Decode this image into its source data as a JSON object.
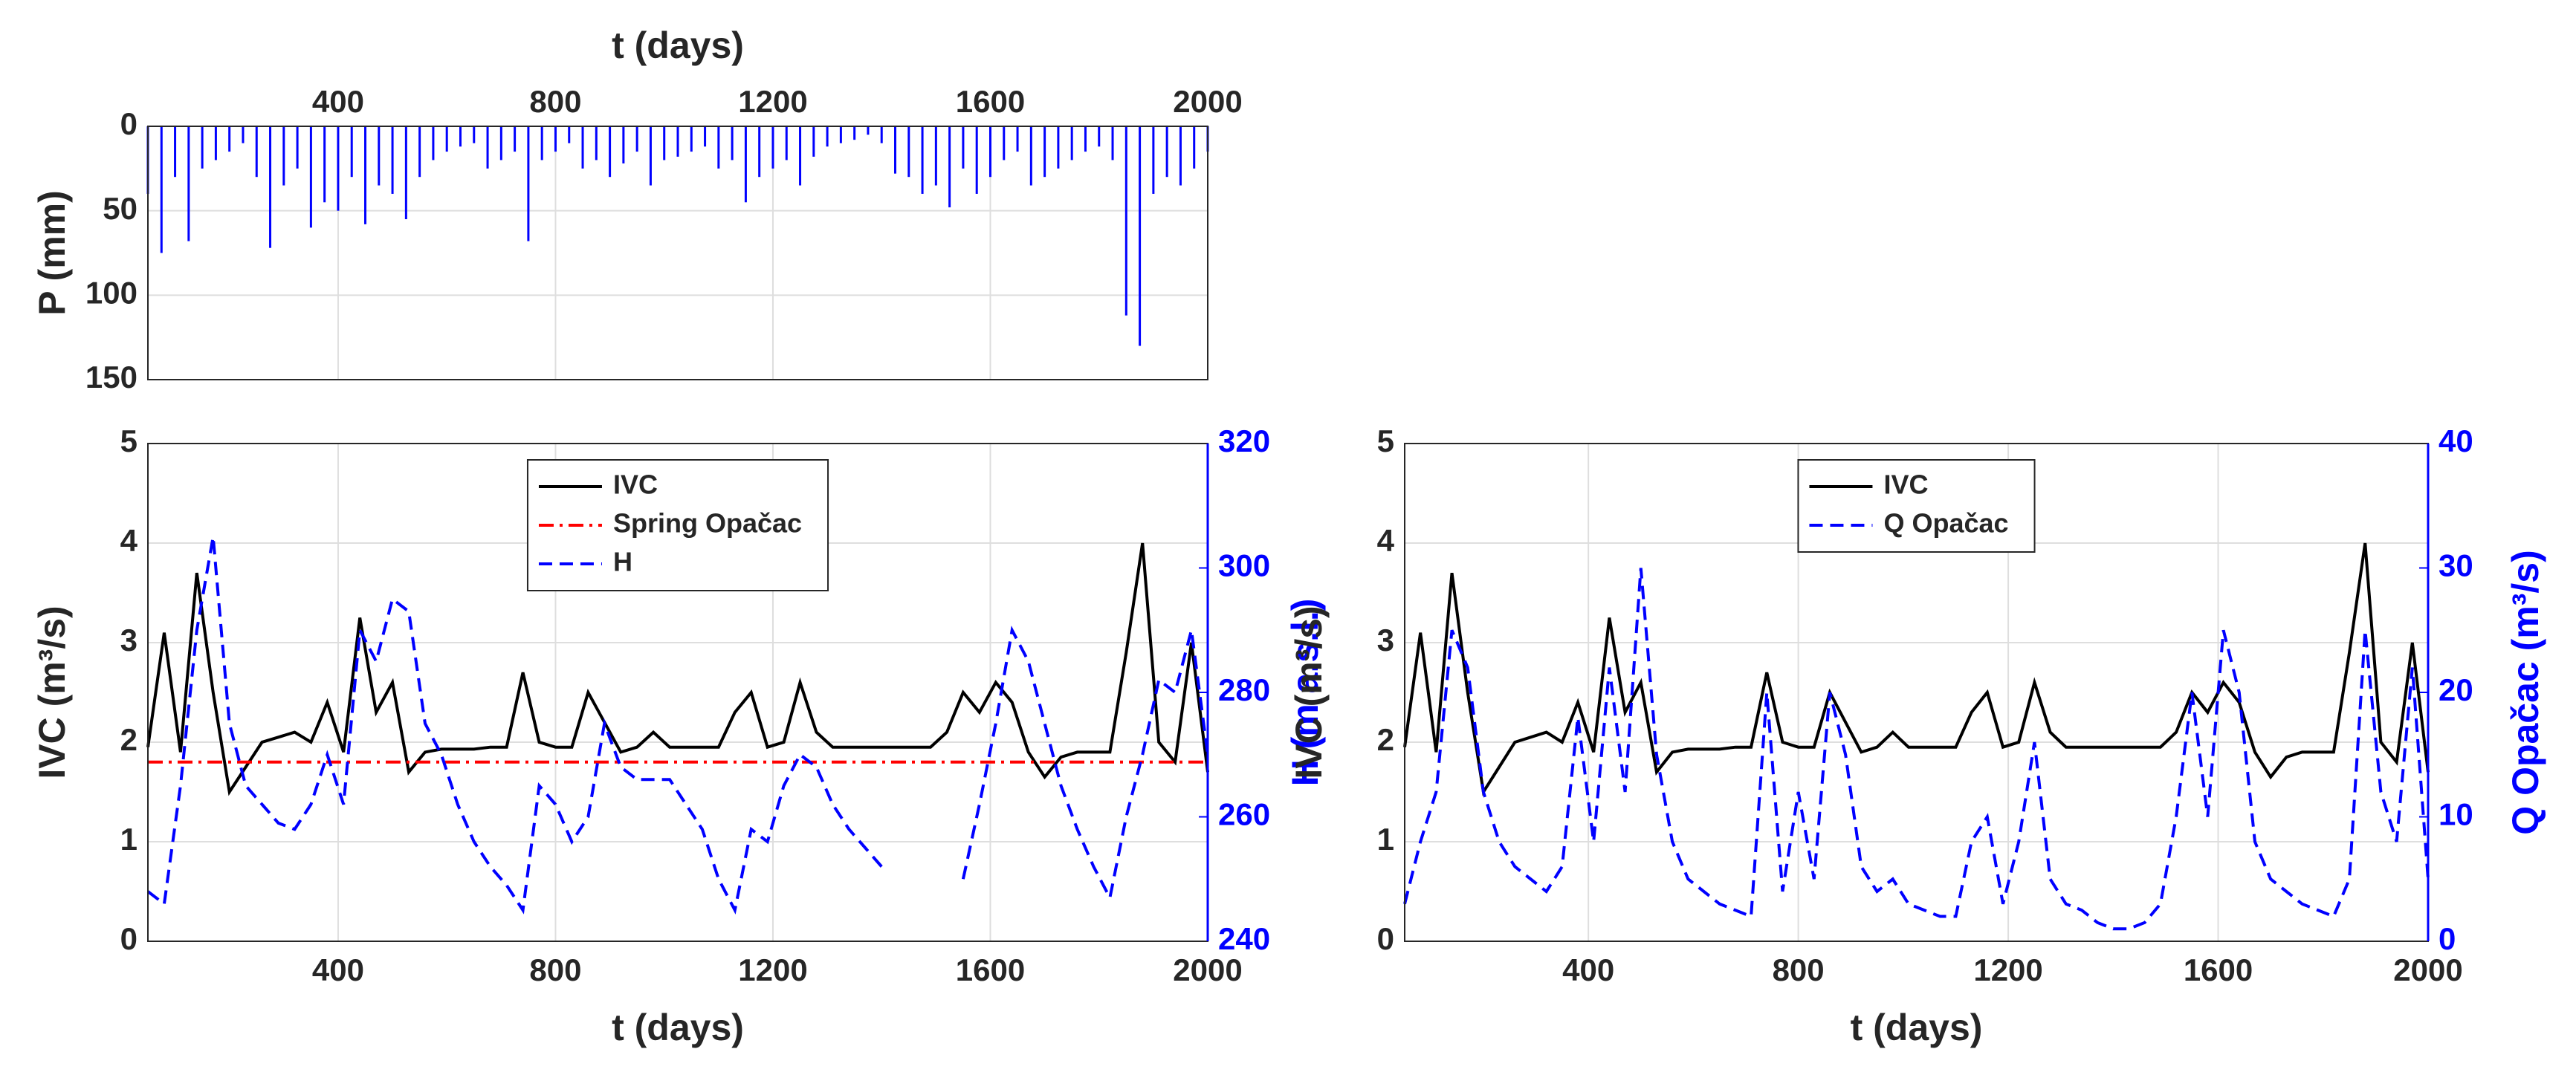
{
  "chart_data": [
    {
      "type": "bar",
      "xlabel": "t (days)",
      "ylabel": "P (mm)",
      "xaxis_position": "top",
      "y_reversed": true,
      "grid": true,
      "color": "#0000ff",
      "xlim": [
        50,
        2000
      ],
      "xticks": [
        400,
        800,
        1200,
        1600,
        2000
      ],
      "ylim": [
        0,
        150
      ],
      "yticks": [
        0,
        50,
        100,
        150
      ],
      "x": [
        50,
        75,
        100,
        125,
        150,
        175,
        200,
        225,
        250,
        275,
        300,
        325,
        350,
        375,
        400,
        425,
        450,
        475,
        500,
        525,
        550,
        575,
        600,
        625,
        650,
        675,
        700,
        725,
        750,
        775,
        800,
        825,
        850,
        875,
        900,
        925,
        950,
        975,
        1000,
        1025,
        1050,
        1075,
        1100,
        1125,
        1150,
        1175,
        1200,
        1225,
        1250,
        1275,
        1300,
        1325,
        1350,
        1375,
        1400,
        1425,
        1450,
        1475,
        1500,
        1525,
        1550,
        1575,
        1600,
        1625,
        1650,
        1675,
        1700,
        1725,
        1750,
        1775,
        1800,
        1825,
        1850,
        1875,
        1900,
        1925,
        1950,
        1975,
        2000
      ],
      "values": [
        40,
        75,
        30,
        68,
        25,
        20,
        15,
        10,
        30,
        72,
        35,
        25,
        60,
        45,
        50,
        30,
        58,
        35,
        40,
        55,
        30,
        20,
        15,
        12,
        10,
        25,
        20,
        15,
        68,
        20,
        15,
        10,
        25,
        20,
        30,
        22,
        15,
        35,
        20,
        18,
        15,
        12,
        25,
        20,
        45,
        30,
        25,
        20,
        35,
        18,
        12,
        10,
        8,
        5,
        10,
        28,
        30,
        40,
        35,
        48,
        25,
        40,
        30,
        20,
        15,
        35,
        30,
        25,
        20,
        15,
        12,
        20,
        112,
        130,
        40,
        30,
        35,
        25,
        15
      ]
    },
    {
      "type": "line",
      "xlabel": "t (days)",
      "ylabel": "IVC (m³/s)",
      "y2label": "H (m a.s.l.)",
      "y2color": "#0000ff",
      "grid": true,
      "legend": "north",
      "xlim": [
        50,
        2000
      ],
      "xticks": [
        400,
        800,
        1200,
        1600,
        2000
      ],
      "ylim": [
        0,
        5
      ],
      "yticks": [
        0,
        1,
        2,
        3,
        4,
        5
      ],
      "y2lim": [
        240,
        320
      ],
      "y2ticks": [
        240,
        260,
        280,
        300,
        320
      ],
      "x": [
        50,
        80,
        110,
        140,
        170,
        200,
        230,
        260,
        290,
        320,
        350,
        380,
        410,
        440,
        470,
        500,
        530,
        560,
        590,
        620,
        650,
        680,
        710,
        740,
        770,
        800,
        830,
        860,
        890,
        920,
        950,
        980,
        1010,
        1040,
        1070,
        1100,
        1130,
        1160,
        1190,
        1220,
        1250,
        1280,
        1310,
        1340,
        1370,
        1400,
        1430,
        1460,
        1490,
        1520,
        1550,
        1580,
        1610,
        1640,
        1670,
        1700,
        1730,
        1760,
        1790,
        1820,
        1850,
        1880,
        1910,
        1940,
        1970,
        2000
      ],
      "series": [
        {
          "name": "IVC",
          "color": "#000000",
          "style": "solid",
          "values": [
            1.95,
            3.1,
            1.9,
            3.7,
            2.5,
            1.5,
            1.75,
            2.0,
            2.05,
            2.1,
            2.0,
            2.4,
            1.9,
            3.25,
            2.3,
            2.6,
            1.7,
            1.9,
            1.93,
            1.93,
            1.93,
            1.95,
            1.95,
            2.7,
            2.0,
            1.95,
            1.95,
            2.5,
            2.2,
            1.9,
            1.95,
            2.1,
            1.95,
            1.95,
            1.95,
            1.95,
            2.3,
            2.5,
            1.95,
            2.0,
            2.6,
            2.1,
            1.95,
            1.95,
            1.95,
            1.95,
            1.95,
            1.95,
            1.95,
            2.1,
            2.5,
            2.3,
            2.6,
            2.4,
            1.9,
            1.65,
            1.85,
            1.9,
            1.9,
            1.9,
            2.9,
            4.0,
            2.0,
            1.8,
            3.0,
            1.7
          ]
        },
        {
          "name": "Spring Opačac",
          "color": "#ff0000",
          "style": "dashdot",
          "x": [
            50,
            2000
          ],
          "values": [
            1.8,
            1.8
          ]
        },
        {
          "name": "H",
          "color": "#0000ff",
          "style": "dashed",
          "axis": "y2",
          "values": [
            248,
            246,
            265,
            290,
            305,
            275,
            265,
            262,
            259,
            258,
            262,
            270,
            262,
            290,
            285,
            295,
            293,
            275,
            270,
            262,
            256,
            252,
            249,
            245,
            265,
            262,
            256,
            260,
            275,
            268,
            266,
            266,
            266,
            262,
            258,
            250,
            245,
            258,
            256,
            265,
            270,
            268,
            262,
            258,
            255,
            252,
            null,
            null,
            null,
            null,
            250,
            262,
            275,
            290,
            285,
            275,
            265,
            258,
            252,
            247,
            260,
            270,
            282,
            280,
            290,
            270
          ]
        }
      ]
    },
    {
      "type": "line",
      "xlabel": "t (days)",
      "ylabel": "IVC (m³/s)",
      "y2label": "Q Opačac (m³/s)",
      "y2color": "#0000ff",
      "grid": true,
      "legend": "north",
      "xlim": [
        50,
        2000
      ],
      "xticks": [
        400,
        800,
        1200,
        1600,
        2000
      ],
      "ylim": [
        0,
        5
      ],
      "yticks": [
        0,
        1,
        2,
        3,
        4,
        5
      ],
      "y2lim": [
        0,
        40
      ],
      "y2ticks": [
        0,
        10,
        20,
        30,
        40
      ],
      "x": [
        50,
        80,
        110,
        140,
        170,
        200,
        230,
        260,
        290,
        320,
        350,
        380,
        410,
        440,
        470,
        500,
        530,
        560,
        590,
        620,
        650,
        680,
        710,
        740,
        770,
        800,
        830,
        860,
        890,
        920,
        950,
        980,
        1010,
        1040,
        1070,
        1100,
        1130,
        1160,
        1190,
        1220,
        1250,
        1280,
        1310,
        1340,
        1370,
        1400,
        1430,
        1460,
        1490,
        1520,
        1550,
        1580,
        1610,
        1640,
        1670,
        1700,
        1730,
        1760,
        1790,
        1820,
        1850,
        1880,
        1910,
        1940,
        1970,
        2000
      ],
      "series": [
        {
          "name": "IVC",
          "color": "#000000",
          "style": "solid",
          "values": [
            1.95,
            3.1,
            1.9,
            3.7,
            2.5,
            1.5,
            1.75,
            2.0,
            2.05,
            2.1,
            2.0,
            2.4,
            1.9,
            3.25,
            2.3,
            2.6,
            1.7,
            1.9,
            1.93,
            1.93,
            1.93,
            1.95,
            1.95,
            2.7,
            2.0,
            1.95,
            1.95,
            2.5,
            2.2,
            1.9,
            1.95,
            2.1,
            1.95,
            1.95,
            1.95,
            1.95,
            2.3,
            2.5,
            1.95,
            2.0,
            2.6,
            2.1,
            1.95,
            1.95,
            1.95,
            1.95,
            1.95,
            1.95,
            1.95,
            2.1,
            2.5,
            2.3,
            2.6,
            2.4,
            1.9,
            1.65,
            1.85,
            1.9,
            1.9,
            1.9,
            2.9,
            4.0,
            2.0,
            1.8,
            3.0,
            1.7
          ]
        },
        {
          "name": "Q Opačac",
          "color": "#0000ff",
          "style": "dashed",
          "axis": "y2",
          "values": [
            3,
            8,
            12,
            25,
            22,
            12,
            8,
            6,
            5,
            4,
            6,
            18,
            8,
            22,
            12,
            30,
            15,
            8,
            5,
            4,
            3,
            2.5,
            2,
            20,
            4,
            12,
            5,
            20,
            15,
            6,
            4,
            5,
            3,
            2.5,
            2,
            2,
            8,
            10,
            3,
            8,
            16,
            5,
            3,
            2.5,
            1.5,
            1,
            1,
            1.5,
            3,
            10,
            20,
            10,
            25,
            20,
            8,
            5,
            4,
            3,
            2.5,
            2,
            5,
            25,
            12,
            8,
            22,
            5
          ]
        }
      ]
    }
  ]
}
